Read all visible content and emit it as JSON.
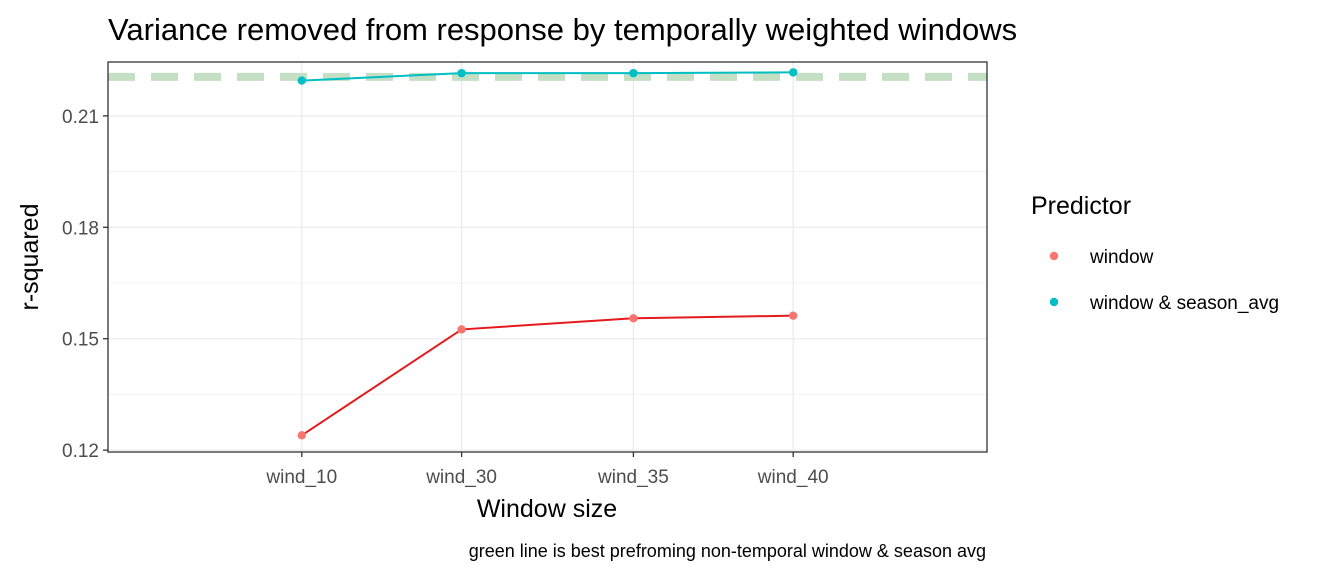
{
  "chart_data": {
    "type": "line",
    "title": "Variance removed from response by temporally weighted windows",
    "xlabel": "Window size",
    "ylabel": "r-squared",
    "caption": "green line is best prefroming non-temporal window & season avg",
    "categories": [
      "wind_10",
      "wind_30",
      "wind_35",
      "wind_40"
    ],
    "ylim": [
      0.1195,
      0.2245
    ],
    "yticks": [
      0.12,
      0.15,
      0.18,
      0.21
    ],
    "ytick_labels": [
      "0.12",
      "0.15",
      "0.18",
      "0.21"
    ],
    "grid": true,
    "legend": {
      "title": "Predictor",
      "position": "right"
    },
    "series": [
      {
        "name": "window",
        "values": [
          0.124,
          0.1525,
          0.1555,
          0.1562
        ],
        "point_color": "#F8766D",
        "line_color": "#E41A1C"
      },
      {
        "name": "window & season_avg",
        "values": [
          0.2195,
          0.2215,
          0.2215,
          0.2217
        ],
        "point_color": "#00BFC4",
        "line_color": "#00BFC4"
      }
    ],
    "reference_line": {
      "y": 0.2205,
      "color": "#C5DFC5",
      "style": "dashed"
    }
  }
}
